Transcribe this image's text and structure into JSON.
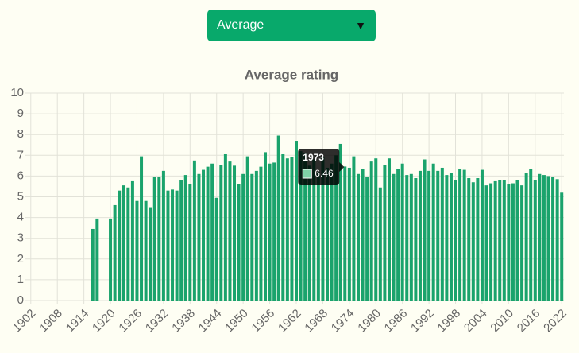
{
  "dropdown": {
    "selected": "Average"
  },
  "chart_data": {
    "type": "bar",
    "title": "Average rating",
    "color": "#1aa36c",
    "categories": [
      "1902",
      null,
      null,
      null,
      null,
      null,
      "1908",
      null,
      null,
      null,
      null,
      null,
      "1914",
      null,
      null,
      null,
      null,
      null,
      "1920",
      null,
      null,
      null,
      null,
      null,
      "1926",
      null,
      null,
      null,
      null,
      null,
      "1932",
      null,
      null,
      null,
      null,
      null,
      "1938",
      null,
      null,
      null,
      null,
      null,
      "1944",
      null,
      null,
      null,
      null,
      null,
      "1950",
      null,
      null,
      null,
      null,
      null,
      "1956",
      null,
      null,
      null,
      null,
      null,
      "1962",
      null,
      null,
      null,
      null,
      null,
      "1968",
      null,
      null,
      null,
      null,
      null,
      "1974",
      null,
      null,
      null,
      null,
      null,
      "1980",
      null,
      null,
      null,
      null,
      null,
      "1986",
      null,
      null,
      null,
      null,
      null,
      "1992",
      null,
      null,
      null,
      null,
      null,
      "1998",
      null,
      null,
      null,
      null,
      null,
      "2004",
      null,
      null,
      null,
      null,
      null,
      "2010",
      null,
      null,
      null,
      null,
      null,
      "2016",
      null,
      null,
      null,
      null,
      null,
      "2022"
    ],
    "values": [
      null,
      null,
      null,
      null,
      null,
      null,
      null,
      null,
      null,
      null,
      null,
      null,
      null,
      null,
      3.45,
      3.95,
      null,
      null,
      3.95,
      4.6,
      5.3,
      5.55,
      5.45,
      5.75,
      4.8,
      6.95,
      4.8,
      4.5,
      5.95,
      5.95,
      6.25,
      5.3,
      5.35,
      5.3,
      5.8,
      6.05,
      5.6,
      6.75,
      6.1,
      6.3,
      6.45,
      6.6,
      4.95,
      6.55,
      7.05,
      6.7,
      6.5,
      5.6,
      6.1,
      6.95,
      6.1,
      6.25,
      6.45,
      7.15,
      6.6,
      6.65,
      7.95,
      7.05,
      6.85,
      6.9,
      7.7,
      7.2,
      7.1,
      6.5,
      6.8,
      6.2,
      6.9,
      6.4,
      6.6,
      7.0,
      7.55,
      6.46,
      6.4,
      6.95,
      6.1,
      6.35,
      5.95,
      6.7,
      6.85,
      5.45,
      6.55,
      6.85,
      6.1,
      6.35,
      6.6,
      6.05,
      6.1,
      5.9,
      6.25,
      6.8,
      6.25,
      6.6,
      6.25,
      6.4,
      6.05,
      6.15,
      5.8,
      6.35,
      6.3,
      5.9,
      5.7,
      5.9,
      6.3,
      5.55,
      5.65,
      5.75,
      5.8,
      5.8,
      5.6,
      5.65,
      5.8,
      5.55,
      6.15,
      6.35,
      5.8,
      6.1,
      6.05,
      6.0,
      5.95,
      5.85,
      5.2
    ],
    "ylim": [
      0,
      10
    ],
    "yticks": [
      0,
      1,
      2,
      3,
      4,
      5,
      6,
      7,
      8,
      9,
      10
    ],
    "grid": true,
    "tooltip": {
      "title": "1973"
    }
  }
}
